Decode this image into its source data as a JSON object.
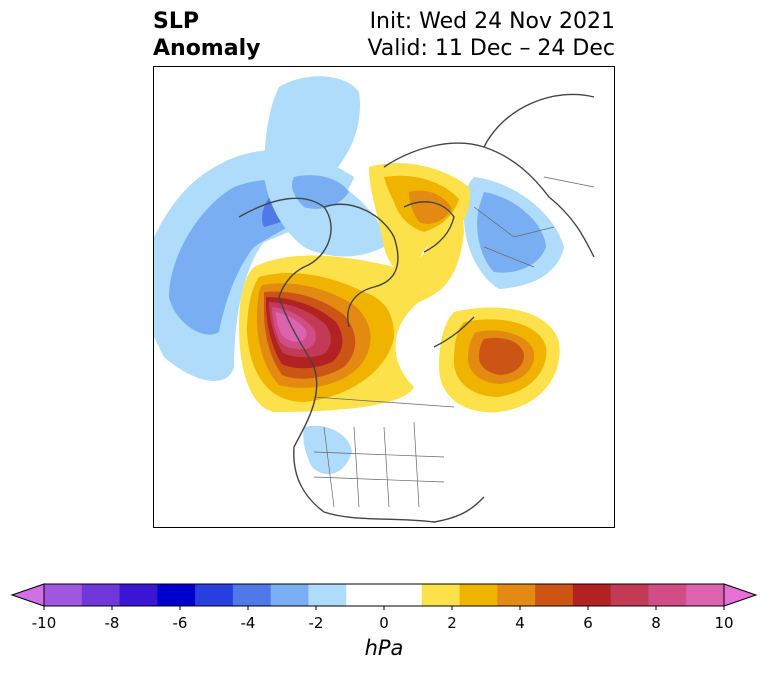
{
  "title": {
    "left_line1": "SLP",
    "left_line2": "Anomaly",
    "right_line1": "Init: Wed 24 Nov 2021",
    "right_line2": "Valid: 11 Dec – 24 Dec"
  },
  "colorbar": {
    "unit": "hPa",
    "ticks": [
      "-10",
      "-8",
      "-6",
      "-4",
      "-2",
      "0",
      "2",
      "4",
      "6",
      "8",
      "10"
    ],
    "colors": [
      "#d26ee6",
      "#a057e0",
      "#6e39d8",
      "#3b16d2",
      "#0000cc",
      "#2a3fe0",
      "#4f78e8",
      "#79aff2",
      "#aedcfa",
      "#ffffff",
      "#ffffff",
      "#fde14a",
      "#f0b400",
      "#e38a12",
      "#cc5414",
      "#b22222",
      "#c23a55",
      "#d04d85",
      "#dc63ad",
      "#e770d6"
    ],
    "extend": "both"
  },
  "map": {
    "projection": "north-polar-stereographic",
    "features": [
      "coastlines",
      "country-borders",
      "state-boundaries",
      "slp-anomaly-contours"
    ]
  }
}
